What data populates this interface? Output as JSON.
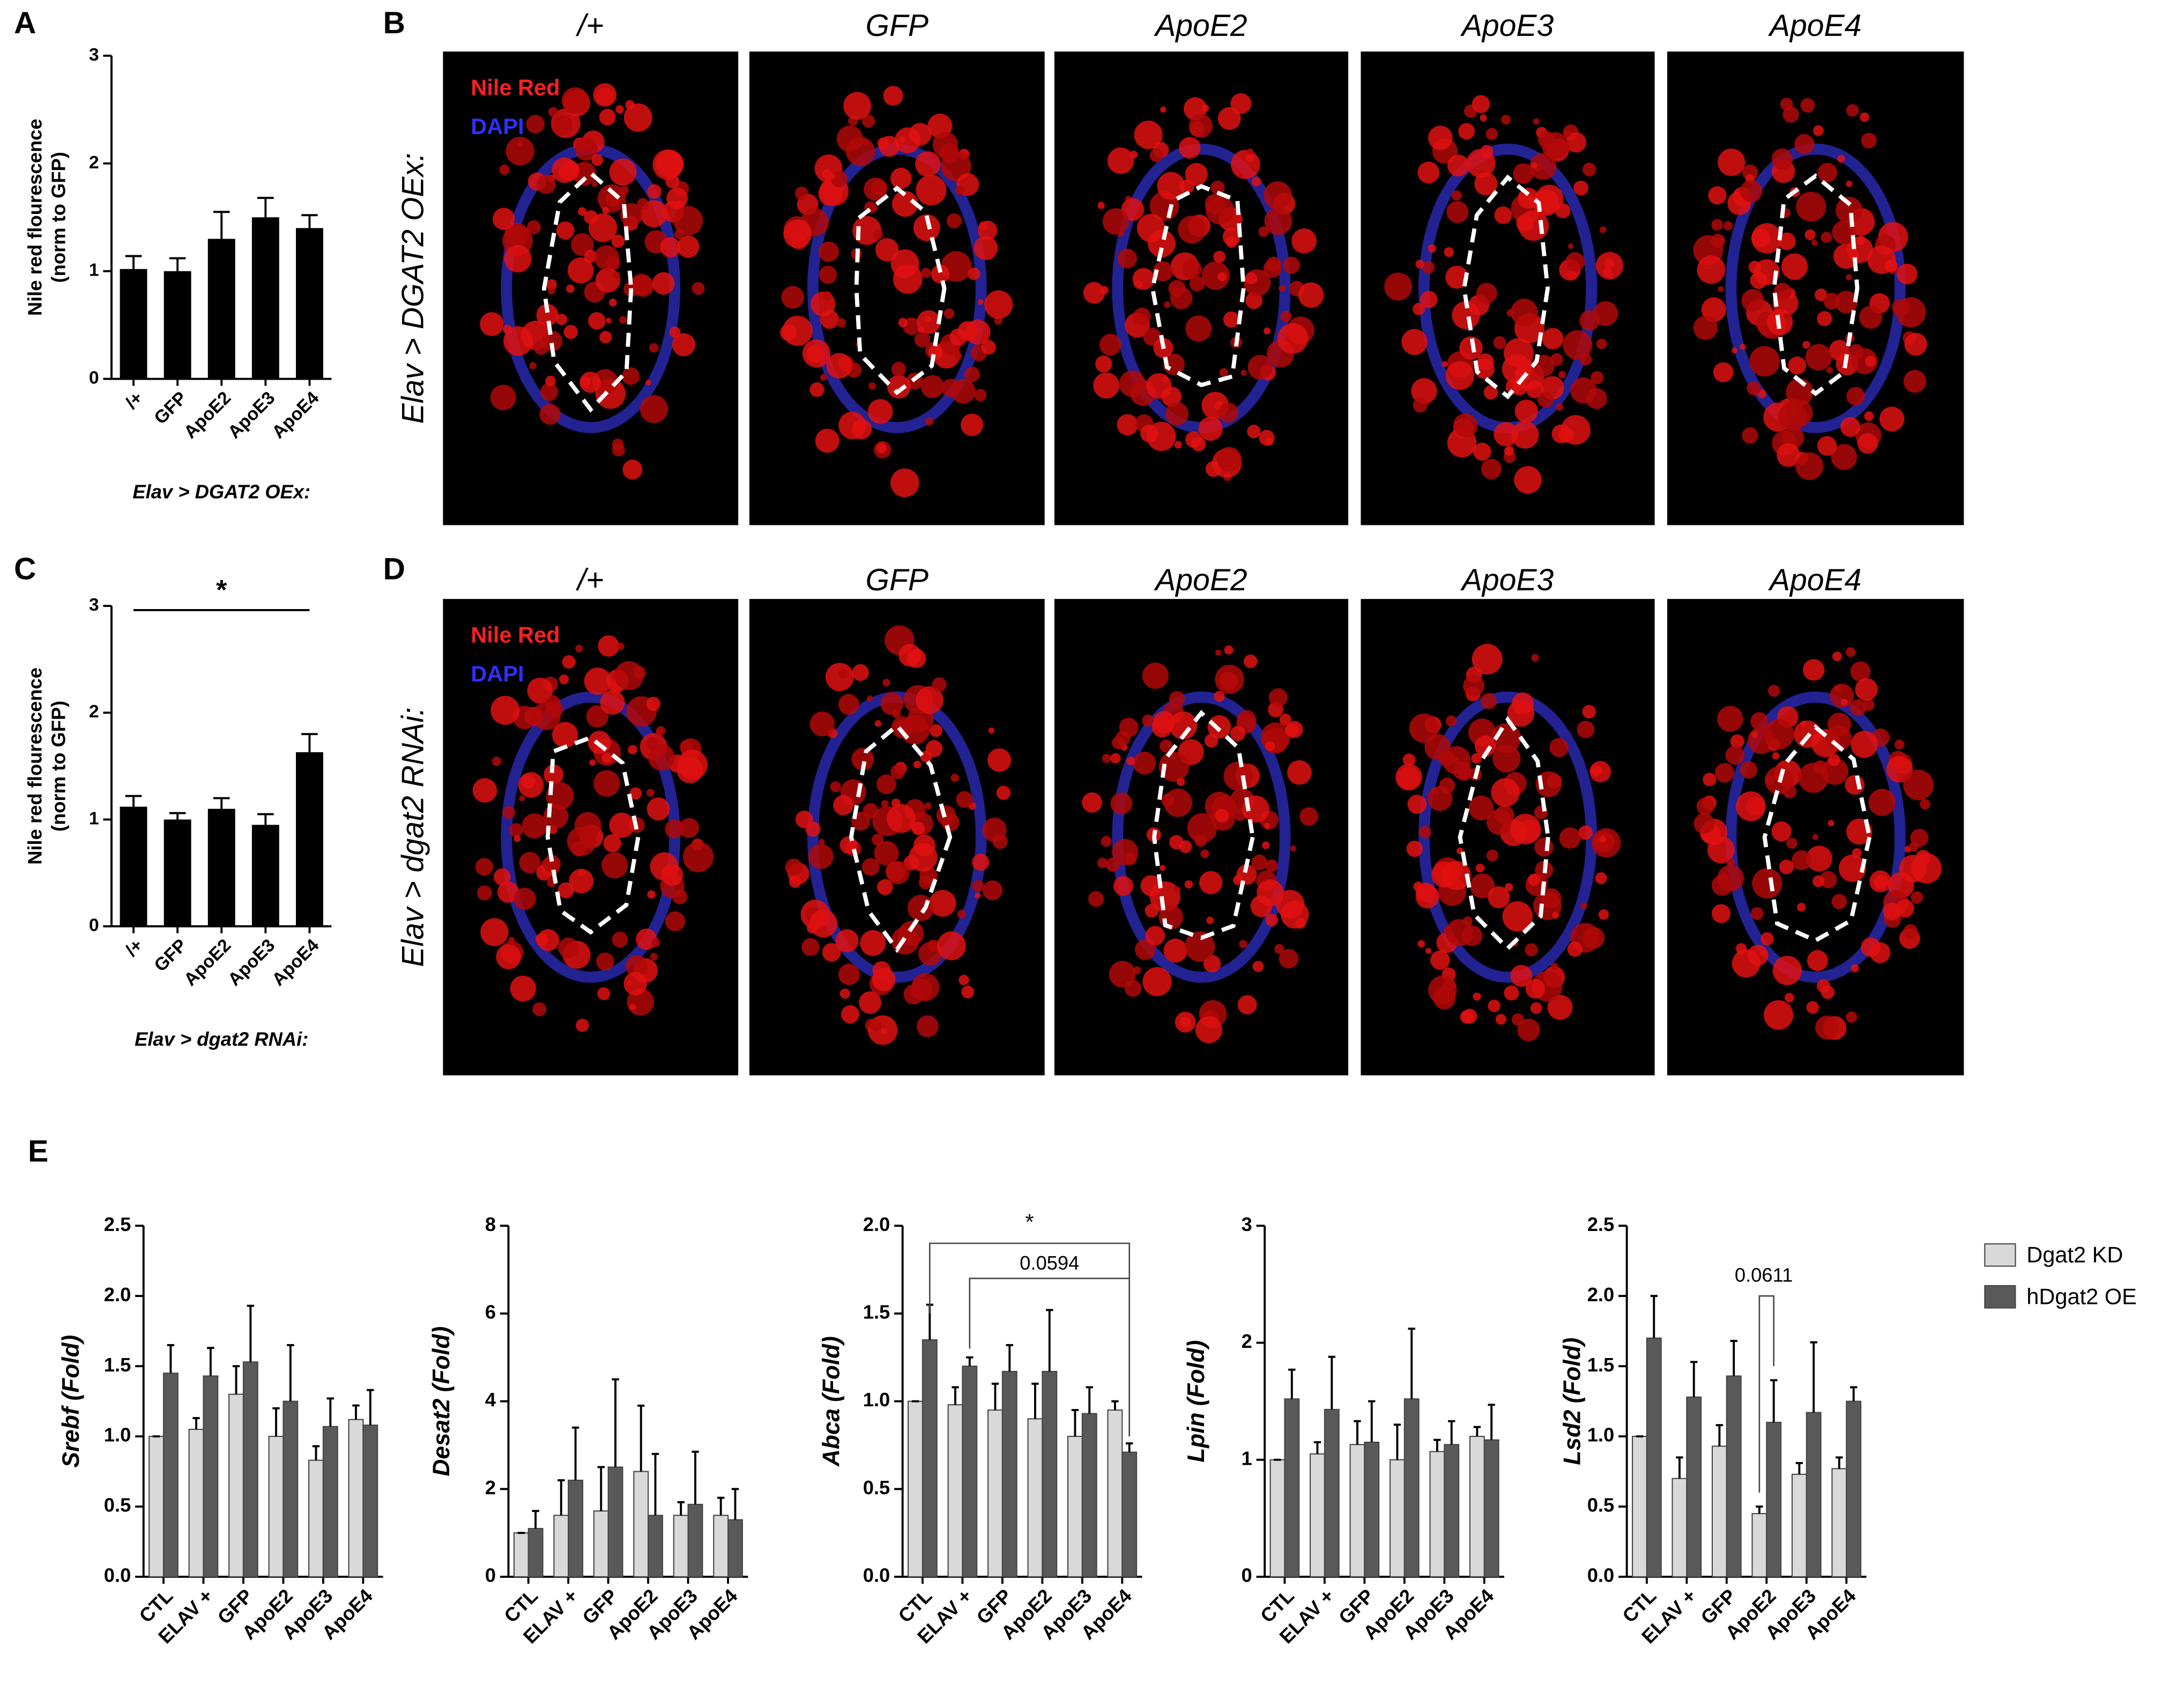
{
  "panels": {
    "a": "A",
    "b": "B",
    "c": "C",
    "d": "D",
    "e": "E"
  },
  "images": {
    "columns": [
      "/+",
      "GFP",
      "ApoE2",
      "ApoE3",
      "ApoE4"
    ],
    "row_labels": [
      "Elav > DGAT2 OEx:",
      "Elav > dgat2 RNAi:"
    ],
    "stains": [
      "Nile Red",
      "DAPI"
    ]
  },
  "chart_data": [
    {
      "type": "bar",
      "ylabel": [
        "Nile red flourescence",
        "(norm to  GFP)"
      ],
      "xlabel": "Elav > DGAT2 OEx:",
      "categories": [
        "/+",
        "GFP",
        "ApoE2",
        "ApoE3",
        "ApoE4"
      ],
      "values": [
        1.02,
        1.0,
        1.3,
        1.5,
        1.4
      ],
      "errors": [
        0.12,
        0.12,
        0.25,
        0.18,
        0.12
      ],
      "color": "#000000",
      "ylim": [
        0,
        3
      ],
      "yticks": [
        0,
        1,
        2,
        3
      ]
    },
    {
      "type": "bar",
      "ylabel": [
        "Nile red flourescence",
        "(norm to  GFP)"
      ],
      "xlabel": "Elav > dgat2 RNAi:",
      "categories": [
        "/+",
        "GFP",
        "ApoE2",
        "ApoE3",
        "ApoE4"
      ],
      "values": [
        1.12,
        1.0,
        1.1,
        0.95,
        1.63
      ],
      "errors": [
        0.1,
        0.06,
        0.1,
        0.1,
        0.17
      ],
      "color": "#000000",
      "ylim": [
        0,
        3
      ],
      "yticks": [
        0,
        1,
        2,
        3
      ],
      "annotations": [
        "*"
      ]
    },
    {
      "type": "grouped_bar",
      "ylabel": "Srebf (Fold)",
      "categories": [
        "CTL",
        "ELAV +",
        "GFP",
        "ApoE2",
        "ApoE3",
        "ApoE4"
      ],
      "series": [
        {
          "name": "Dgat2 KD",
          "color": "#d9d9d9",
          "values": [
            1.0,
            1.05,
            1.3,
            1.0,
            0.83,
            1.12
          ],
          "errors": [
            0,
            0.08,
            0.2,
            0.2,
            0.1,
            0.1
          ]
        },
        {
          "name": "hDgat2 OE",
          "color": "#595959",
          "values": [
            1.45,
            1.43,
            1.53,
            1.25,
            1.07,
            1.08
          ],
          "errors": [
            0.2,
            0.2,
            0.4,
            0.4,
            0.2,
            0.25
          ]
        }
      ],
      "ylim": [
        0,
        2.5
      ],
      "yticks": [
        {
          "value": 0,
          "label": "0.0"
        },
        {
          "value": 0.5,
          "label": "0.5"
        },
        {
          "value": 1,
          "label": "1.0"
        },
        {
          "value": 1.5,
          "label": "1.5"
        },
        {
          "value": 2,
          "label": "2.0"
        },
        {
          "value": 2.5,
          "label": "2.5"
        }
      ]
    },
    {
      "type": "grouped_bar",
      "ylabel": "Desat2 (Fold)",
      "categories": [
        "CTL",
        "ELAV +",
        "GFP",
        "ApoE2",
        "ApoE3",
        "ApoE4"
      ],
      "series": [
        {
          "name": "Dgat2 KD",
          "color": "#d9d9d9",
          "values": [
            1.0,
            1.4,
            1.5,
            2.4,
            1.4,
            1.4
          ],
          "errors": [
            0,
            0.8,
            1.0,
            1.5,
            0.3,
            0.4
          ]
        },
        {
          "name": "hDgat2 OE",
          "color": "#595959",
          "values": [
            1.1,
            2.2,
            2.5,
            1.4,
            1.65,
            1.3
          ],
          "errors": [
            0.4,
            1.2,
            2.0,
            1.4,
            1.2,
            0.7
          ]
        }
      ],
      "ylim": [
        0,
        8
      ],
      "yticks": [
        0,
        2,
        4,
        6,
        8
      ]
    },
    {
      "type": "grouped_bar",
      "ylabel": "Abca (Fold)",
      "categories": [
        "CTL",
        "ELAV +",
        "GFP",
        "ApoE2",
        "ApoE3",
        "ApoE4"
      ],
      "series": [
        {
          "name": "Dgat2 KD",
          "color": "#d9d9d9",
          "values": [
            1.0,
            0.98,
            0.95,
            0.9,
            0.8,
            0.95
          ],
          "errors": [
            0,
            0.1,
            0.15,
            0.2,
            0.15,
            0.05
          ]
        },
        {
          "name": "hDgat2 OE",
          "color": "#595959",
          "values": [
            1.35,
            1.2,
            1.17,
            1.17,
            0.93,
            0.71
          ],
          "errors": [
            0.2,
            0.05,
            0.15,
            0.35,
            0.15,
            0.05
          ]
        }
      ],
      "ylim": [
        0,
        2
      ],
      "yticks": [
        {
          "value": 0,
          "label": "0.0"
        },
        {
          "value": 0.5,
          "label": "0.5"
        },
        {
          "value": 1,
          "label": "1.0"
        },
        {
          "value": 1.5,
          "label": "1.5"
        },
        {
          "value": 2,
          "label": "2.0"
        }
      ],
      "annotations": [
        "*",
        "0.0594"
      ]
    },
    {
      "type": "grouped_bar",
      "ylabel": "Lpin (Fold)",
      "categories": [
        "CTL",
        "ELAV +",
        "GFP",
        "ApoE2",
        "ApoE3",
        "ApoE4"
      ],
      "series": [
        {
          "name": "Dgat2 KD",
          "color": "#d9d9d9",
          "values": [
            1.0,
            1.05,
            1.13,
            1.0,
            1.07,
            1.2
          ],
          "errors": [
            0,
            0.1,
            0.2,
            0.3,
            0.1,
            0.08
          ]
        },
        {
          "name": "hDgat2 OE",
          "color": "#595959",
          "values": [
            1.52,
            1.43,
            1.15,
            1.52,
            1.13,
            1.17
          ],
          "errors": [
            0.25,
            0.45,
            0.35,
            0.6,
            0.2,
            0.3
          ]
        }
      ],
      "ylim": [
        0,
        3
      ],
      "yticks": [
        0,
        1,
        2,
        3
      ]
    },
    {
      "type": "grouped_bar",
      "ylabel": "Lsd2 (Fold)",
      "categories": [
        "CTL",
        "ELAV +",
        "GFP",
        "ApoE2",
        "ApoE3",
        "ApoE4"
      ],
      "series": [
        {
          "name": "Dgat2 KD",
          "color": "#d9d9d9",
          "values": [
            1.0,
            0.7,
            0.93,
            0.45,
            0.73,
            0.77
          ],
          "errors": [
            0,
            0.15,
            0.15,
            0.05,
            0.08,
            0.08
          ]
        },
        {
          "name": "hDgat2 OE",
          "color": "#595959",
          "values": [
            1.7,
            1.28,
            1.43,
            1.1,
            1.17,
            1.25
          ],
          "errors": [
            0.3,
            0.25,
            0.25,
            0.3,
            0.5,
            0.1
          ]
        }
      ],
      "ylim": [
        0,
        2.5
      ],
      "yticks": [
        {
          "value": 0,
          "label": "0.0"
        },
        {
          "value": 0.5,
          "label": "0.5"
        },
        {
          "value": 1,
          "label": "1.0"
        },
        {
          "value": 1.5,
          "label": "1.5"
        },
        {
          "value": 2,
          "label": "2.0"
        },
        {
          "value": 2.5,
          "label": "2.5"
        }
      ],
      "annotations": [
        "0.0611"
      ],
      "legend": true
    }
  ]
}
